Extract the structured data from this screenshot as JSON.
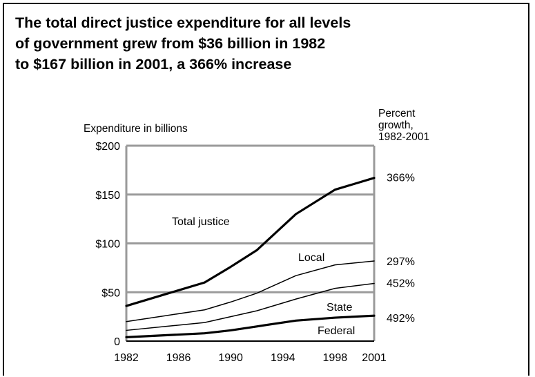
{
  "title_lines": [
    "The total direct justice expenditure for all levels",
    "of government grew from $36 billion in 1982",
    "to $167 billion in 2001, a 366% increase"
  ],
  "chart_data": {
    "type": "line",
    "title": "The total direct justice expenditure for all levels of government grew from $36 billion in 1982 to $167 billion in 2001, a 366% increase",
    "ylabel": "Expenditure in billions",
    "right_header": [
      "Percent",
      "growth,",
      "1982-2001"
    ],
    "x_ticks": [
      1982,
      1986,
      1990,
      1994,
      1998,
      2001
    ],
    "y_ticks": [
      0,
      50,
      100,
      150,
      200
    ],
    "y_tick_labels": [
      "0",
      "$50",
      "$100",
      "$150",
      "$200"
    ],
    "xlim": [
      1982,
      2001
    ],
    "ylim": [
      0,
      200
    ],
    "grid": "horizontal",
    "series": [
      {
        "name": "Total justice",
        "growth": "366%",
        "bold": true,
        "x": [
          1982,
          1985,
          1988,
          1990,
          1992,
          1995,
          1998,
          2001
        ],
        "y": [
          36,
          48,
          60,
          76,
          93,
          130,
          155,
          167
        ]
      },
      {
        "name": "Local",
        "growth": "297%",
        "bold": false,
        "x": [
          1982,
          1985,
          1988,
          1990,
          1992,
          1995,
          1998,
          2001
        ],
        "y": [
          20,
          26,
          32,
          40,
          49,
          67,
          78,
          82
        ]
      },
      {
        "name": "State",
        "growth": "452%",
        "bold": false,
        "x": [
          1982,
          1985,
          1988,
          1990,
          1992,
          1995,
          1998,
          2001
        ],
        "y": [
          11,
          15,
          19,
          25,
          31,
          43,
          54,
          59
        ]
      },
      {
        "name": "Federal",
        "growth": "492%",
        "bold": true,
        "x": [
          1982,
          1985,
          1988,
          1990,
          1992,
          1995,
          1998,
          2001
        ],
        "y": [
          4,
          6,
          8,
          11,
          15,
          21,
          24,
          26
        ]
      }
    ],
    "legend": "inline labels"
  }
}
